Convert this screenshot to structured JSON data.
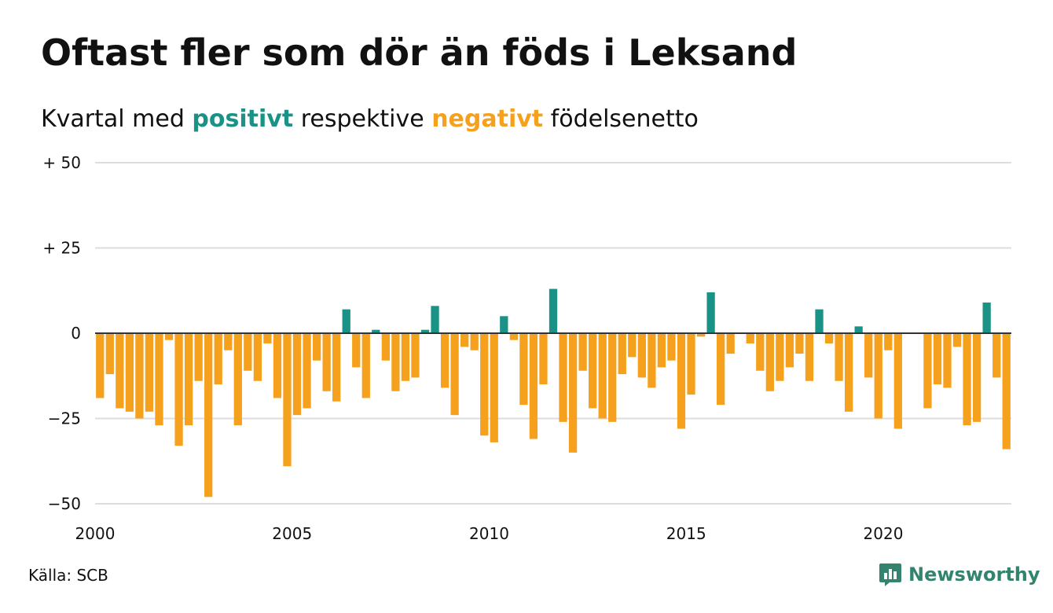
{
  "title": "Oftast fler som dör än föds i Leksand",
  "subtitle": {
    "part1": "Kvartal med ",
    "positive_word": "positivt",
    "part2": " respektive ",
    "negative_word": "negativt",
    "part3": " födelsenetto"
  },
  "source": "Källa: SCB",
  "brand": "Newsworthy",
  "colors": {
    "positive": "#1a9285",
    "negative": "#f5a11e",
    "grid": "#dddddd",
    "zero_line": "#333333",
    "brand": "#33836f"
  },
  "chart_data": {
    "type": "bar",
    "y_tick_labels": [
      "+ 50",
      "+ 25",
      "0",
      "−25",
      "−50"
    ],
    "y_tick_values": [
      50,
      25,
      0,
      -25,
      -50
    ],
    "x_tick_labels": [
      "2000",
      "2005",
      "2010",
      "2015",
      "2020"
    ],
    "x_tick_values": [
      2000,
      2005,
      2010,
      2015,
      2020
    ],
    "ylim": [
      -50,
      50
    ],
    "xlim": [
      2000,
      2023.25
    ],
    "start_quarter": "2000Q1",
    "quarterly_values": [
      -19,
      -12,
      -22,
      -23,
      -25,
      -23,
      -27,
      -2,
      -33,
      -27,
      -14,
      -48,
      -15,
      -5,
      -27,
      -11,
      -14,
      -3,
      -19,
      -39,
      -24,
      -22,
      -8,
      -17,
      -20,
      7,
      -10,
      -19,
      1,
      -8,
      -17,
      -14,
      -13,
      1,
      8,
      -16,
      -24,
      -4,
      -5,
      -30,
      -32,
      5,
      -2,
      -21,
      -31,
      -15,
      13,
      -26,
      -35,
      -11,
      -22,
      -25,
      -26,
      -12,
      -7,
      -13,
      -16,
      -10,
      -8,
      -28,
      -18,
      -1,
      12,
      -21,
      -6,
      0,
      -3,
      -11,
      -17,
      -14,
      -10,
      -6,
      -14,
      7,
      -3,
      -14,
      -23,
      2,
      -13,
      -25,
      -5,
      -28,
      0,
      0,
      -22,
      -15,
      -16,
      -4,
      -27,
      -26,
      9,
      -13,
      -34
    ],
    "grid": true,
    "legend": "none"
  }
}
